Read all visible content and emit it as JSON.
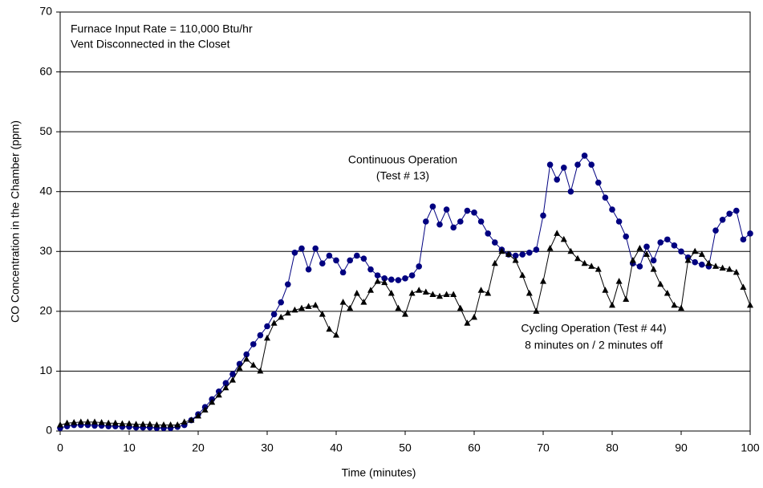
{
  "chart_data": {
    "type": "scatter-line",
    "x_label": "Time (minutes)",
    "y_label": "CO Concentration in the Chamber (ppm)",
    "annotations": [
      "Furnace Input Rate  =  110,000 Btu/hr",
      "Vent Disconnected in the Closet",
      "Continuous Operation",
      "(Test # 13)",
      "Cycling Operation  (Test # 44)",
      "8 minutes on /  2 minutes off"
    ],
    "x": [
      0,
      1,
      2,
      3,
      4,
      5,
      6,
      7,
      8,
      9,
      10,
      11,
      12,
      13,
      14,
      15,
      16,
      17,
      18,
      19,
      20,
      21,
      22,
      23,
      24,
      25,
      26,
      27,
      28,
      29,
      30,
      31,
      32,
      33,
      34,
      35,
      36,
      37,
      38,
      39,
      40,
      41,
      42,
      43,
      44,
      45,
      46,
      47,
      48,
      49,
      50,
      51,
      52,
      53,
      54,
      55,
      56,
      57,
      58,
      59,
      60,
      61,
      62,
      63,
      64,
      65,
      66,
      67,
      68,
      69,
      70,
      71,
      72,
      73,
      74,
      75,
      76,
      77,
      78,
      79,
      80,
      81,
      82,
      83,
      84,
      85,
      86,
      87,
      88,
      89,
      90,
      91,
      92,
      93,
      94,
      95,
      96,
      97,
      98,
      99,
      100
    ],
    "series": [
      {
        "color": "#000080",
        "marker": "circle",
        "values": [
          0.5,
          0.8,
          1.0,
          1.0,
          1.0,
          0.9,
          0.9,
          0.8,
          0.8,
          0.7,
          0.7,
          0.6,
          0.6,
          0.6,
          0.5,
          0.5,
          0.5,
          0.7,
          1.0,
          1.8,
          2.8,
          4.0,
          5.3,
          6.6,
          8.0,
          9.5,
          11.2,
          12.8,
          14.5,
          16.0,
          17.5,
          19.5,
          21.5,
          24.5,
          29.8,
          30.5,
          27.0,
          30.5,
          28.0,
          29.3,
          28.5,
          26.5,
          28.5,
          29.3,
          28.8,
          27.0,
          26.0,
          25.5,
          25.3,
          25.2,
          25.5,
          26.0,
          27.5,
          35.0,
          37.5,
          34.5,
          37.0,
          34.0,
          35.0,
          36.8,
          36.5,
          35.0,
          33.0,
          31.5,
          30.3,
          29.5,
          29.3,
          29.5,
          29.8,
          30.3,
          36.0,
          44.5,
          42.0,
          44.0,
          40.0,
          44.5,
          46.0,
          44.5,
          41.5,
          39.0,
          37.0,
          35.0,
          32.5,
          28.0,
          27.5,
          30.8,
          28.5,
          31.5,
          32.0,
          31.0,
          30.0,
          29.0,
          28.2,
          27.8,
          27.5,
          33.5,
          35.3,
          36.3,
          36.8,
          32.0,
          33.0
        ]
      },
      {
        "color": "#000000",
        "marker": "triangle",
        "values": [
          1.0,
          1.3,
          1.4,
          1.5,
          1.5,
          1.5,
          1.4,
          1.3,
          1.3,
          1.2,
          1.2,
          1.1,
          1.1,
          1.1,
          1.0,
          1.0,
          1.0,
          1.0,
          1.5,
          1.8,
          2.5,
          3.5,
          4.8,
          6.0,
          7.2,
          8.5,
          10.5,
          12.0,
          11.0,
          10.0,
          15.5,
          18.0,
          19.0,
          19.7,
          20.2,
          20.5,
          20.8,
          21.0,
          19.5,
          17.0,
          16.0,
          21.5,
          20.5,
          23.0,
          21.5,
          23.5,
          25.0,
          24.8,
          23.0,
          20.5,
          19.5,
          23.0,
          23.5,
          23.2,
          22.8,
          22.5,
          22.8,
          22.8,
          20.5,
          18.0,
          19.0,
          23.5,
          23.0,
          28.0,
          30.0,
          29.5,
          28.5,
          26.0,
          23.0,
          20.0,
          25.0,
          30.5,
          33.0,
          32.0,
          30.0,
          28.8,
          28.0,
          27.5,
          27.0,
          23.5,
          21.0,
          25.0,
          22.0,
          28.5,
          30.5,
          29.5,
          27.0,
          24.5,
          23.0,
          21.0,
          20.5,
          28.5,
          30.0,
          29.5,
          28.0,
          27.5,
          27.2,
          27.0,
          26.5,
          24.0,
          21.0
        ]
      }
    ],
    "xlim": [
      0,
      100
    ],
    "xticks": [
      0,
      10,
      20,
      30,
      40,
      50,
      60,
      70,
      80,
      90,
      100
    ],
    "ylim": [
      0,
      70
    ],
    "yticks": [
      0,
      10,
      20,
      30,
      40,
      50,
      60,
      70
    ],
    "grid": true
  }
}
